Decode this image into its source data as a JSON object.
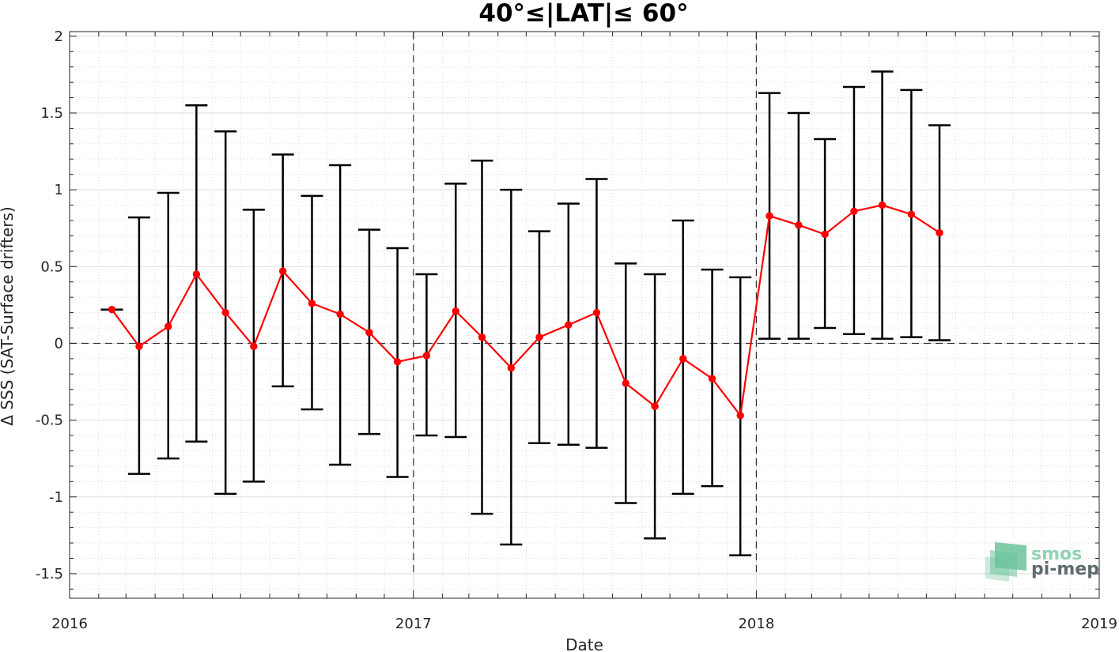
{
  "chart_data": {
    "type": "line",
    "title": "40°≤|LAT|≤ 60°",
    "xlabel": "Date",
    "ylabel": "Δ SSS (SAT-Surface drifters)",
    "xlim": [
      "2016-01-01",
      "2019-01-01"
    ],
    "ylim": [
      -1.66,
      2.03
    ],
    "x_ticks": [
      "2016",
      "2017",
      "2018",
      "2019"
    ],
    "y_ticks": [
      "-1.5",
      "-1",
      "-0.5",
      "0",
      "0.5",
      "1",
      "1.5",
      "2"
    ],
    "grid": true,
    "minor_grid": true,
    "reference_line_y": 0,
    "year_boundaries": [
      "2017-01-01",
      "2018-01-01"
    ],
    "series": [
      {
        "color": "#ff0000",
        "marker": "circle",
        "errorbar_color": "#000000",
        "x": [
          "2016-02-15",
          "2016-03-15",
          "2016-04-15",
          "2016-05-15",
          "2016-06-15",
          "2016-07-15",
          "2016-08-15",
          "2016-09-15",
          "2016-10-15",
          "2016-11-15",
          "2016-12-15",
          "2017-01-15",
          "2017-02-15",
          "2017-03-15",
          "2017-04-15",
          "2017-05-15",
          "2017-06-15",
          "2017-07-15",
          "2017-08-15",
          "2017-09-15",
          "2017-10-15",
          "2017-11-15",
          "2017-12-15",
          "2018-01-15",
          "2018-02-15",
          "2018-03-15",
          "2018-04-15",
          "2018-05-15",
          "2018-06-15",
          "2018-07-15"
        ],
        "y": [
          0.22,
          -0.02,
          0.11,
          0.45,
          0.2,
          -0.02,
          0.47,
          0.26,
          0.19,
          0.07,
          -0.12,
          -0.08,
          0.21,
          0.04,
          -0.16,
          0.04,
          0.12,
          0.2,
          -0.26,
          -0.41,
          -0.1,
          -0.23,
          -0.47,
          0.83,
          0.77,
          0.71,
          0.86,
          0.9,
          0.84,
          0.72
        ],
        "upper": [
          0.22,
          0.82,
          0.98,
          1.55,
          1.38,
          0.87,
          1.23,
          0.96,
          1.16,
          0.74,
          0.62,
          0.45,
          1.04,
          1.19,
          1.0,
          0.73,
          0.91,
          1.07,
          0.52,
          0.45,
          0.8,
          0.48,
          0.43,
          1.63,
          1.5,
          1.33,
          1.67,
          1.77,
          1.65,
          1.42
        ],
        "lower": [
          0.22,
          -0.85,
          -0.75,
          -0.64,
          -0.98,
          -0.9,
          -0.28,
          -0.43,
          -0.79,
          -0.59,
          -0.87,
          -0.6,
          -0.61,
          -1.11,
          -1.31,
          -0.65,
          -0.66,
          -0.68,
          -1.04,
          -1.27,
          -0.98,
          -0.93,
          -1.38,
          0.03,
          0.03,
          0.1,
          0.06,
          0.03,
          0.04,
          0.02
        ]
      }
    ]
  },
  "logo": {
    "line1": "smos",
    "line2": "pi-mep",
    "color1": "#93d2b4",
    "color2": "#5f6b6f",
    "mark_color": "#6cc39b"
  }
}
